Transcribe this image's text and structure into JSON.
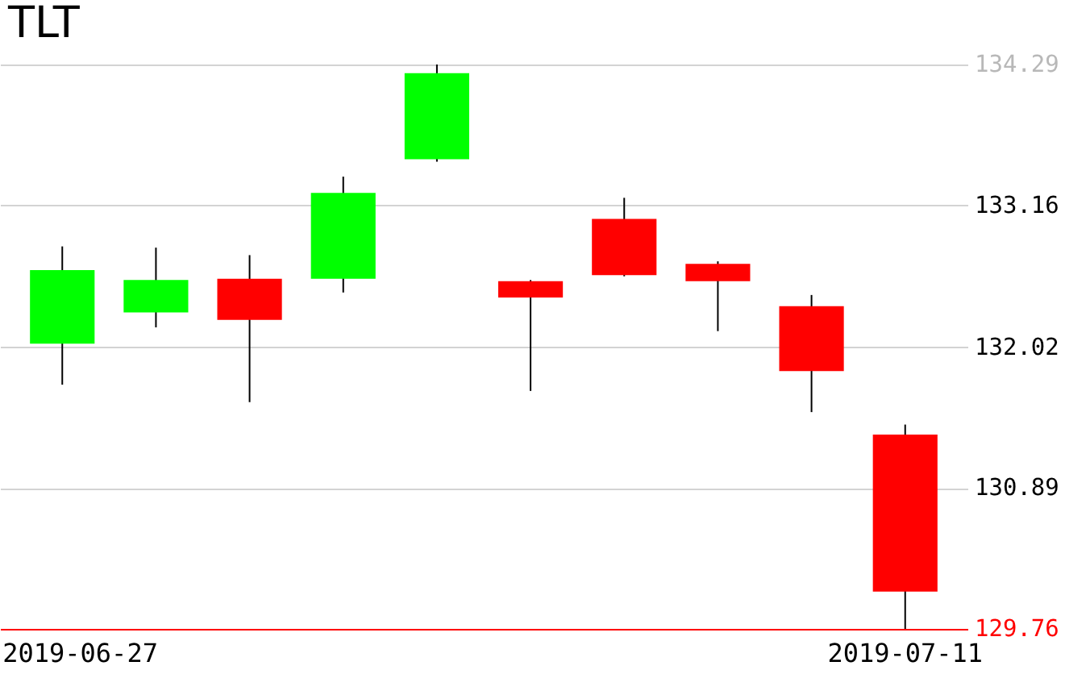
{
  "chart_data": {
    "type": "candlestick",
    "title": "TLT",
    "categories": [
      "2019-06-27",
      null,
      null,
      null,
      null,
      null,
      null,
      null,
      null,
      "2019-07-11"
    ],
    "ohlc": [
      [
        132.05,
        132.83,
        131.72,
        132.64
      ],
      [
        132.3,
        132.82,
        132.18,
        132.56
      ],
      [
        132.57,
        132.76,
        131.58,
        132.24
      ],
      [
        132.57,
        133.39,
        132.46,
        133.26
      ],
      [
        133.53,
        134.29,
        133.51,
        134.22
      ],
      [
        132.55,
        132.56,
        131.67,
        132.42
      ],
      [
        133.05,
        133.22,
        132.59,
        132.6
      ],
      [
        132.69,
        132.71,
        132.15,
        132.55
      ],
      [
        132.35,
        132.44,
        131.5,
        131.83
      ],
      [
        131.32,
        131.4,
        129.76,
        130.06
      ]
    ],
    "colors": [
      "#00ff00",
      "#00ff00",
      "#ff0000",
      "#00ff00",
      "#00ff00",
      "#ff0000",
      "#ff0000",
      "#ff0000",
      "#ff0000",
      "#ff0000"
    ],
    "ylim": [
      129.76,
      134.29
    ],
    "yticks": [
      129.76,
      130.89,
      132.02,
      133.16,
      134.29
    ],
    "grid": "y"
  }
}
